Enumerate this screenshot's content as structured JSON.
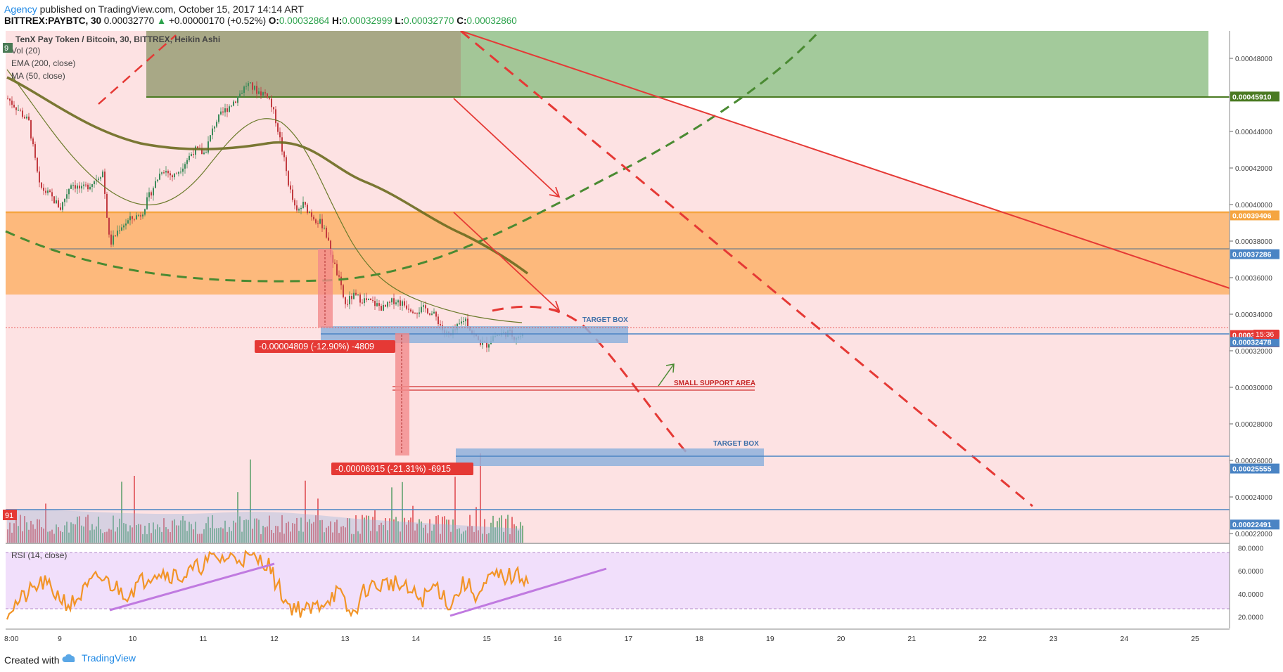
{
  "header": {
    "publisher": "Agency",
    "published_text": " published on TradingView.com, October 15, 2017 14:14 ART",
    "symbol": "BITTREX:PAYBTC, 30",
    "last": "0.00032770",
    "change_arrow": "▲",
    "change": "+0.00000170 (+0.52%)",
    "o_label": "O:",
    "o": "0.00032864",
    "h_label": "H:",
    "h": "0.00032999",
    "l_label": "L:",
    "l": "0.00032770",
    "c_label": "C:",
    "c": "0.00032860"
  },
  "footer": {
    "created": "Created with",
    "brand": "TradingView"
  },
  "legend": {
    "title": "TenX Pay Token / Bitcoin, 30, BITTREX, Heikin Ashi",
    "vol": "Vol (20)",
    "ema": "EMA (200, close)",
    "ma": "MA (50, close)",
    "rsi": "RSI (14, close)",
    "left_badge_top": "9",
    "left_badge_vol": "91"
  },
  "annotations": {
    "target_box_1": "TARGET BOX",
    "target_box_2": "TARGET BOX",
    "small_support": "SMALL SUPPORT AREA",
    "measure_1": "-0.00004809 (-12.90%) -4809",
    "measure_2": "-0.00006915 (-21.31%) -6915",
    "time_badge": "15:36"
  },
  "colors": {
    "pink_bg": "#fde2e3",
    "green_zone": "#93c18a",
    "orange_zone": "#fdb26a",
    "blue_box": "#8fb1dc",
    "bull": "#3c8b5a",
    "bear": "#c23b40",
    "red_line": "#e53935",
    "green_dash": "#4a8a32",
    "ema": "#6b6b1f",
    "rsi_line": "#f29427",
    "rsi_trend": "#c07ae0"
  },
  "chart_data": {
    "type": "candlestick",
    "title": "TenX Pay Token / Bitcoin, 30, BITTREX, Heikin Ashi",
    "x_ticks": [
      "8:00",
      "9",
      "10",
      "11",
      "12",
      "13",
      "14",
      "15",
      "16",
      "17",
      "18",
      "19",
      "20",
      "21",
      "22",
      "23",
      "24",
      "25"
    ],
    "y_ticks": [
      "0.00048000",
      "0.00046000",
      "0.00044000",
      "0.00042000",
      "0.00040000",
      "0.00038000",
      "0.00036000",
      "0.00034000",
      "0.00032000",
      "0.00030000",
      "0.00028000",
      "0.00026000",
      "0.00024000",
      "0.00022000"
    ],
    "ylim": [
      0.000215,
      0.000495
    ],
    "price_labels": [
      {
        "value": 0.0004591,
        "text": "0.00045910",
        "color": "#4a7a22"
      },
      {
        "value": 0.00039406,
        "text": "0.00039406",
        "color": "#f5a540"
      },
      {
        "value": 0.00037286,
        "text": "0.00037286",
        "color": "#4a84c4"
      },
      {
        "value": 0.0003286,
        "text": "0.00032860",
        "color": "#e53935"
      },
      {
        "value": 0.0003277,
        "text": "0.00032770",
        "color": "#e53935"
      },
      {
        "value": 0.00032478,
        "text": "0.00032478",
        "color": "#4a84c4"
      },
      {
        "value": 0.00025555,
        "text": "0.00025555",
        "color": "#4a84c4"
      },
      {
        "value": 0.00022491,
        "text": "0.00022491",
        "color": "#4a84c4"
      }
    ],
    "key_points": [
      {
        "x": "8:00",
        "y": 0.000458
      },
      {
        "x": "11.8",
        "y": 0.000467
      },
      {
        "x": "12.8",
        "y": 0.000372
      },
      {
        "x": "13.0",
        "y": 0.000343
      },
      {
        "x": "14.5",
        "y": 0.000328
      },
      {
        "x": "15.0",
        "y": 0.000322
      },
      {
        "x": "15.6",
        "y": 0.0003277
      }
    ],
    "rsi_ticks": [
      "80.0000",
      "60.0000",
      "40.0000",
      "20.0000"
    ],
    "rsi_ylim": [
      10,
      82
    ]
  }
}
